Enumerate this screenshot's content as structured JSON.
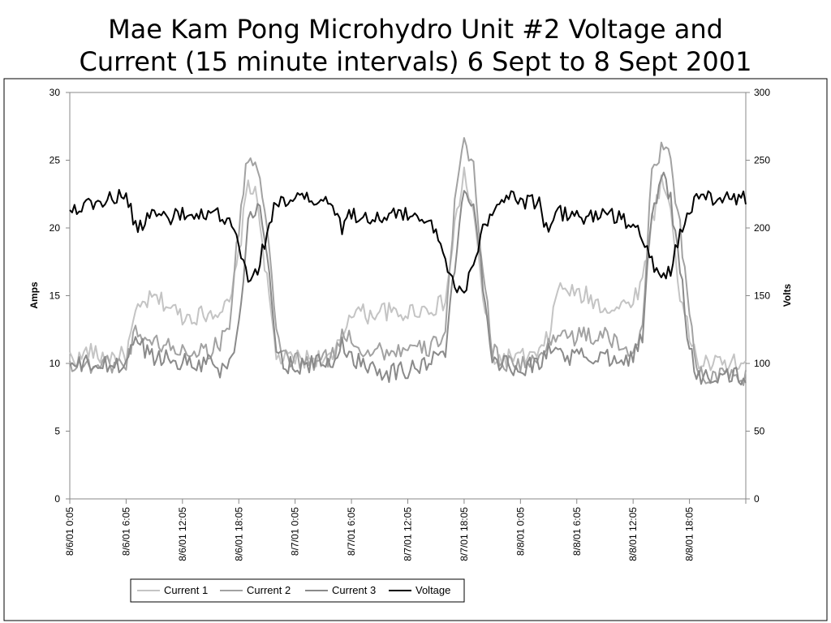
{
  "title": {
    "line1": "Mae Kam Pong Microhydro Unit #2 Voltage and",
    "line2": "Current (15 minute intervals) 6 Sept to 8 Sept 2001"
  },
  "colors": {
    "current1": "#c4c4c4",
    "current2": "#a2a2a2",
    "current3": "#8a8a8a",
    "voltage": "#000000",
    "frame": "#000000",
    "axis": "#888888"
  },
  "chart_data": {
    "type": "line",
    "title": "Mae Kam Pong Microhydro Unit #2 Voltage and Current (15 minute intervals) 6 Sept to 8 Sept 2001",
    "ylabel": "Amps",
    "y2label": "Volts",
    "ylim": [
      0,
      30
    ],
    "y2lim": [
      0,
      300
    ],
    "yticks": [
      "0",
      "5",
      "10",
      "15",
      "20",
      "25",
      "30"
    ],
    "y2ticks": [
      "0",
      "50",
      "100",
      "150",
      "200",
      "250",
      "300"
    ],
    "x_interval_minutes": 15,
    "x_tick_labels": [
      "8/6/01 0:05",
      "8/6/01 6:05",
      "8/6/01 12:05",
      "8/6/01 18:05",
      "8/7/01 0:05",
      "8/7/01 6:05",
      "8/7/01 12:05",
      "8/7/01 18:05",
      "8/8/01 0:05",
      "8/8/01 6:05",
      "8/8/01 12:05",
      "8/8/01 18:05"
    ],
    "legend_position": "bottom",
    "grid": false,
    "series": [
      {
        "name": "Current 1",
        "axis": "left",
        "profile": [
          [
            0,
            10.5
          ],
          [
            1,
            10.3
          ],
          [
            2,
            11.0
          ],
          [
            3,
            10.5
          ],
          [
            4,
            10.5
          ],
          [
            5,
            10.5
          ],
          [
            6,
            10.6
          ],
          [
            7,
            13.5
          ],
          [
            8,
            14.5
          ],
          [
            9,
            14.8
          ],
          [
            10,
            14.5
          ],
          [
            11,
            14.0
          ],
          [
            12,
            13.5
          ],
          [
            13,
            13.5
          ],
          [
            14,
            13.6
          ],
          [
            15,
            13.8
          ],
          [
            16,
            14.0
          ],
          [
            17,
            14.2
          ],
          [
            18,
            18.0
          ],
          [
            19,
            23.5
          ],
          [
            20,
            22.0
          ],
          [
            21,
            16.0
          ],
          [
            22,
            10.5
          ],
          [
            23,
            10.3
          ],
          [
            24,
            10.4
          ],
          [
            25,
            10.3
          ],
          [
            26,
            10.5
          ],
          [
            27,
            10.3
          ],
          [
            28,
            10.2
          ],
          [
            29,
            12.0
          ],
          [
            30,
            14.0
          ],
          [
            31,
            13.8
          ],
          [
            32,
            13.5
          ],
          [
            33,
            14.0
          ],
          [
            34,
            13.8
          ],
          [
            35,
            13.5
          ],
          [
            36,
            13.8
          ],
          [
            37,
            14.0
          ],
          [
            38,
            14.0
          ],
          [
            39,
            14.2
          ],
          [
            40,
            14.5
          ],
          [
            41,
            20.0
          ],
          [
            42,
            24.0
          ],
          [
            43,
            21.0
          ],
          [
            44,
            15.0
          ],
          [
            45,
            10.5
          ],
          [
            46,
            10.3
          ],
          [
            47,
            10.5
          ],
          [
            48,
            10.4
          ],
          [
            49,
            10.5
          ],
          [
            50,
            10.6
          ],
          [
            51,
            12.0
          ],
          [
            52,
            15.5
          ],
          [
            53,
            15.5
          ],
          [
            54,
            15.0
          ],
          [
            55,
            15.0
          ],
          [
            56,
            14.5
          ],
          [
            57,
            14.2
          ],
          [
            58,
            14.0
          ],
          [
            59,
            14.3
          ],
          [
            60,
            14.8
          ],
          [
            61,
            16.0
          ],
          [
            62,
            20.5
          ],
          [
            63,
            23.5
          ],
          [
            64,
            21.5
          ],
          [
            65,
            15.0
          ],
          [
            66,
            12.0
          ],
          [
            67,
            10.0
          ]
        ]
      },
      {
        "name": "Current 2",
        "axis": "left",
        "profile": [
          [
            0,
            10.0
          ],
          [
            1,
            10.0
          ],
          [
            2,
            9.8
          ],
          [
            3,
            10.0
          ],
          [
            4,
            10.0
          ],
          [
            5,
            10.0
          ],
          [
            6,
            10.0
          ],
          [
            7,
            12.5
          ],
          [
            8,
            12.0
          ],
          [
            9,
            11.5
          ],
          [
            10,
            11.5
          ],
          [
            11,
            11.0
          ],
          [
            12,
            11.0
          ],
          [
            13,
            11.0
          ],
          [
            14,
            11.0
          ],
          [
            15,
            11.0
          ],
          [
            16,
            11.5
          ],
          [
            17,
            13.0
          ],
          [
            18,
            20.0
          ],
          [
            19,
            25.5
          ],
          [
            20,
            24.5
          ],
          [
            21,
            20.0
          ],
          [
            22,
            12.0
          ],
          [
            23,
            10.5
          ],
          [
            24,
            10.2
          ],
          [
            25,
            10.0
          ],
          [
            26,
            10.0
          ],
          [
            27,
            10.3
          ],
          [
            28,
            10.5
          ],
          [
            29,
            12.0
          ],
          [
            30,
            12.0
          ],
          [
            31,
            11.0
          ],
          [
            32,
            11.0
          ],
          [
            33,
            11.0
          ],
          [
            34,
            10.8
          ],
          [
            35,
            11.0
          ],
          [
            36,
            11.0
          ],
          [
            37,
            11.0
          ],
          [
            38,
            11.0
          ],
          [
            39,
            11.5
          ],
          [
            40,
            12.5
          ],
          [
            41,
            22.0
          ],
          [
            42,
            26.0
          ],
          [
            43,
            24.5
          ],
          [
            44,
            17.0
          ],
          [
            45,
            11.0
          ],
          [
            46,
            10.2
          ],
          [
            47,
            10.0
          ],
          [
            48,
            10.0
          ],
          [
            49,
            10.0
          ],
          [
            50,
            10.2
          ],
          [
            51,
            11.5
          ],
          [
            52,
            12.5
          ],
          [
            53,
            12.0
          ],
          [
            54,
            12.0
          ],
          [
            55,
            12.0
          ],
          [
            56,
            12.0
          ],
          [
            57,
            12.0
          ],
          [
            58,
            11.5
          ],
          [
            59,
            11.0
          ],
          [
            60,
            11.0
          ],
          [
            61,
            13.0
          ],
          [
            62,
            24.0
          ],
          [
            63,
            26.0
          ],
          [
            64,
            25.0
          ],
          [
            65,
            20.0
          ],
          [
            66,
            14.0
          ],
          [
            67,
            9.0
          ]
        ]
      },
      {
        "name": "Current 3",
        "axis": "left",
        "profile": [
          [
            0,
            9.8
          ],
          [
            1,
            9.8
          ],
          [
            2,
            10.0
          ],
          [
            3,
            9.8
          ],
          [
            4,
            9.8
          ],
          [
            5,
            9.8
          ],
          [
            6,
            10.0
          ],
          [
            7,
            12.0
          ],
          [
            8,
            11.0
          ],
          [
            9,
            10.5
          ],
          [
            10,
            10.5
          ],
          [
            11,
            10.2
          ],
          [
            12,
            10.2
          ],
          [
            13,
            10.0
          ],
          [
            14,
            10.0
          ],
          [
            15,
            10.3
          ],
          [
            16,
            9.5
          ],
          [
            17,
            10.0
          ],
          [
            18,
            13.0
          ],
          [
            19,
            20.0
          ],
          [
            20,
            22.0
          ],
          [
            21,
            18.0
          ],
          [
            22,
            11.0
          ],
          [
            23,
            10.0
          ],
          [
            24,
            9.8
          ],
          [
            25,
            9.8
          ],
          [
            26,
            10.0
          ],
          [
            27,
            10.0
          ],
          [
            28,
            10.0
          ],
          [
            29,
            11.5
          ],
          [
            30,
            10.5
          ],
          [
            31,
            10.0
          ],
          [
            32,
            10.0
          ],
          [
            33,
            9.5
          ],
          [
            34,
            9.3
          ],
          [
            35,
            9.5
          ],
          [
            36,
            9.5
          ],
          [
            37,
            9.8
          ],
          [
            38,
            10.0
          ],
          [
            39,
            10.5
          ],
          [
            40,
            11.0
          ],
          [
            41,
            17.0
          ],
          [
            42,
            23.0
          ],
          [
            43,
            22.0
          ],
          [
            44,
            16.0
          ],
          [
            45,
            10.5
          ],
          [
            46,
            10.0
          ],
          [
            47,
            9.8
          ],
          [
            48,
            9.8
          ],
          [
            49,
            9.8
          ],
          [
            50,
            10.0
          ],
          [
            51,
            11.0
          ],
          [
            52,
            11.0
          ],
          [
            53,
            10.5
          ],
          [
            54,
            10.5
          ],
          [
            55,
            10.5
          ],
          [
            56,
            10.5
          ],
          [
            57,
            10.5
          ],
          [
            58,
            10.5
          ],
          [
            59,
            10.5
          ],
          [
            60,
            10.5
          ],
          [
            61,
            12.0
          ],
          [
            62,
            21.0
          ],
          [
            63,
            24.0
          ],
          [
            64,
            22.0
          ],
          [
            65,
            17.0
          ],
          [
            66,
            11.0
          ],
          [
            67,
            9.0
          ]
        ]
      },
      {
        "name": "Voltage",
        "axis": "right",
        "profile": [
          [
            0,
            214
          ],
          [
            1,
            216
          ],
          [
            2,
            217
          ],
          [
            3,
            219
          ],
          [
            4,
            221
          ],
          [
            5,
            223
          ],
          [
            6,
            224
          ],
          [
            7,
            200
          ],
          [
            8,
            205
          ],
          [
            9,
            212
          ],
          [
            10,
            209
          ],
          [
            11,
            208
          ],
          [
            12,
            210
          ],
          [
            13,
            208
          ],
          [
            14,
            208
          ],
          [
            15,
            208
          ],
          [
            16,
            210
          ],
          [
            17,
            205
          ],
          [
            18,
            185
          ],
          [
            19,
            160
          ],
          [
            20,
            170
          ],
          [
            21,
            195
          ],
          [
            22,
            220
          ],
          [
            23,
            222
          ],
          [
            24,
            221
          ],
          [
            25,
            221
          ],
          [
            26,
            220
          ],
          [
            27,
            219
          ],
          [
            28,
            218
          ],
          [
            29,
            200
          ],
          [
            30,
            210
          ],
          [
            31,
            210
          ],
          [
            32,
            208
          ],
          [
            33,
            208
          ],
          [
            34,
            208
          ],
          [
            35,
            210
          ],
          [
            36,
            210
          ],
          [
            37,
            208
          ],
          [
            38,
            210
          ],
          [
            39,
            195
          ],
          [
            40,
            175
          ],
          [
            41,
            160
          ],
          [
            42,
            150
          ],
          [
            43,
            175
          ],
          [
            44,
            200
          ],
          [
            45,
            215
          ],
          [
            46,
            221
          ],
          [
            47,
            222
          ],
          [
            48,
            221
          ],
          [
            49,
            219
          ],
          [
            50,
            218
          ],
          [
            51,
            195
          ],
          [
            52,
            212
          ],
          [
            53,
            210
          ],
          [
            54,
            208
          ],
          [
            55,
            208
          ],
          [
            56,
            210
          ],
          [
            57,
            210
          ],
          [
            58,
            208
          ],
          [
            59,
            205
          ],
          [
            60,
            203
          ],
          [
            61,
            190
          ],
          [
            62,
            175
          ],
          [
            63,
            163
          ],
          [
            64,
            170
          ],
          [
            65,
            195
          ],
          [
            66,
            215
          ],
          [
            67,
            222
          ]
        ]
      }
    ]
  }
}
